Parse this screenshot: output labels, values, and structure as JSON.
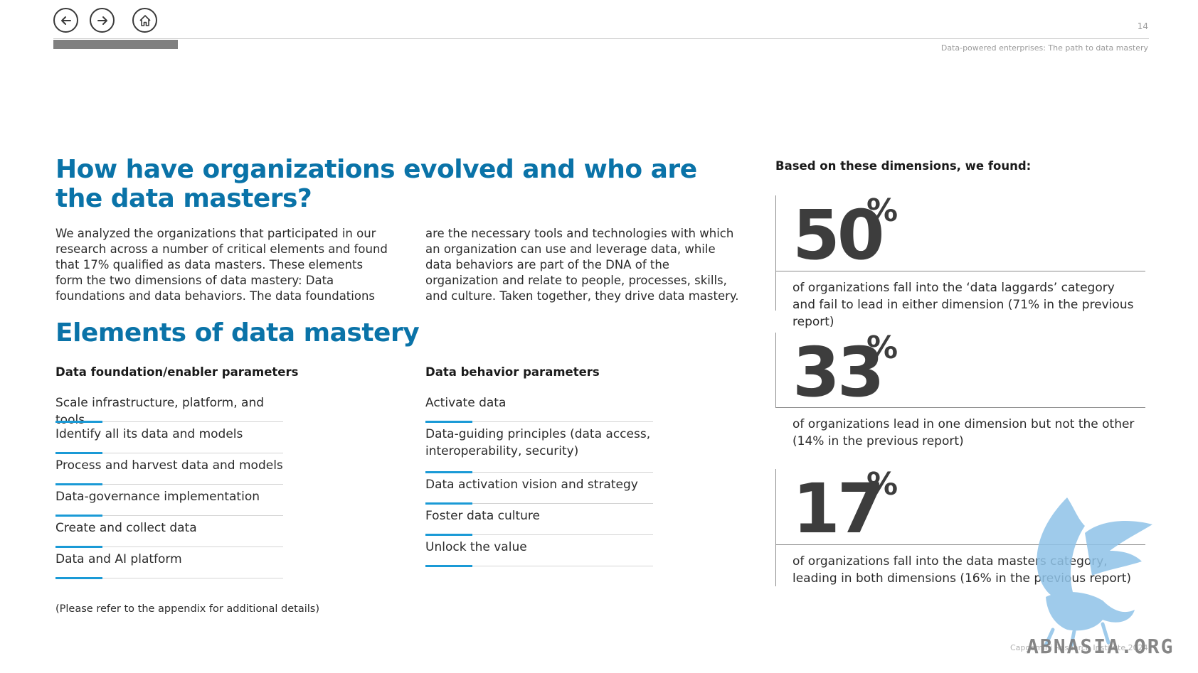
{
  "nav": {
    "back_icon": "arrow-left-icon",
    "forward_icon": "arrow-right-icon",
    "home_icon": "home-icon"
  },
  "header": {
    "page_number": "14",
    "running_head": "Data-powered enterprises: The path to data mastery"
  },
  "main": {
    "title": "How have organizations evolved and who are the data masters?",
    "intro_left": "We analyzed the organizations that participated in our research across a number of critical elements and found that 17% qualified as data masters. These elements form the two dimensions of data mastery: Data foundations and data behaviors. The data foundations",
    "intro_right": "are the necessary tools and technologies with which an organization can use and leverage data, while data behaviors are part of the DNA of the organization and relate to people, processes, skills, and culture. Taken together, they drive data mastery.",
    "section_title": "Elements of data mastery",
    "foundation": {
      "heading": "Data foundation/enabler parameters",
      "items": [
        "Scale infrastructure, platform, and tools",
        "Identify all its data and models",
        "Process and harvest data and models",
        "Data-governance implementation",
        "Create and collect data",
        "Data and AI platform"
      ]
    },
    "behavior": {
      "heading": "Data behavior parameters",
      "items": [
        "Activate data",
        "Data-guiding principles (data access, interoperability, security)",
        "Data activation vision and strategy",
        "Foster data culture",
        "Unlock the value"
      ]
    },
    "footnote": "(Please refer to the appendix for additional details)"
  },
  "stats": {
    "heading": "Based on these dimensions, we found:",
    "items": [
      {
        "value": "50",
        "unit": "%",
        "text": "of organizations fall into the ‘data laggards’ category and fail to lead in either dimension (71% in the previous report)"
      },
      {
        "value": "33",
        "unit": "%",
        "text": "of organizations lead in one dimension but not the other (14% in the previous report)"
      },
      {
        "value": "17",
        "unit": "%",
        "text": "of organizations fall into the data masters category, leading in both dimensions (16% in the previous report)"
      }
    ]
  },
  "footer": {
    "watermark_text": "ABNASIA.ORG",
    "copyright": "Capgemini Research Institute 2024"
  },
  "colors": {
    "accent_blue": "#0a73a8",
    "underline_blue": "#1a9ad6",
    "stat_gray": "#3d3d3d"
  }
}
